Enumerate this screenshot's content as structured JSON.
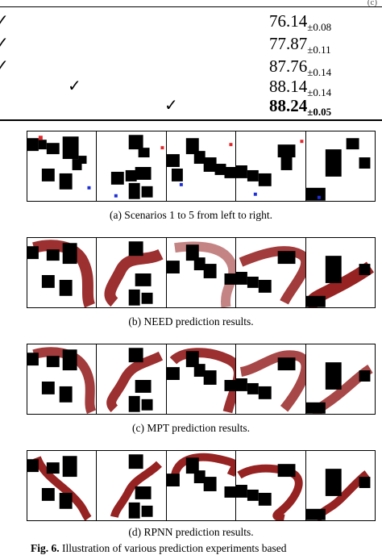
{
  "table": {
    "corner_tag": "(c)",
    "rows": [
      {
        "check": "✓",
        "mean": "76.14",
        "std": "±0.08",
        "bold": false
      },
      {
        "check": "✓",
        "mean": "77.87",
        "std": "±0.11",
        "bold": false
      },
      {
        "check": "✓",
        "mean": "87.76",
        "std": "±0.14",
        "bold": false
      },
      {
        "check": "✓",
        "mean": "88.14",
        "std": "±0.14",
        "bold": false
      },
      {
        "check": "✓",
        "mean": "88.24",
        "std": "±0.05",
        "bold": true
      }
    ]
  },
  "figure": {
    "captions": {
      "a": "(a) Scenarios 1 to 5 from left to right.",
      "b": "(b) NEED prediction results.",
      "c": "(c) MPT prediction results.",
      "d": "(d) RPNN prediction results."
    },
    "footer_label": "Fig. 6.",
    "footer_text": "Illustration of various prediction experiments based"
  },
  "colors": {
    "obstacle": "#000000",
    "start": "#e3262a",
    "goal": "#1f2fd6",
    "path": "#8b0a0a"
  }
}
